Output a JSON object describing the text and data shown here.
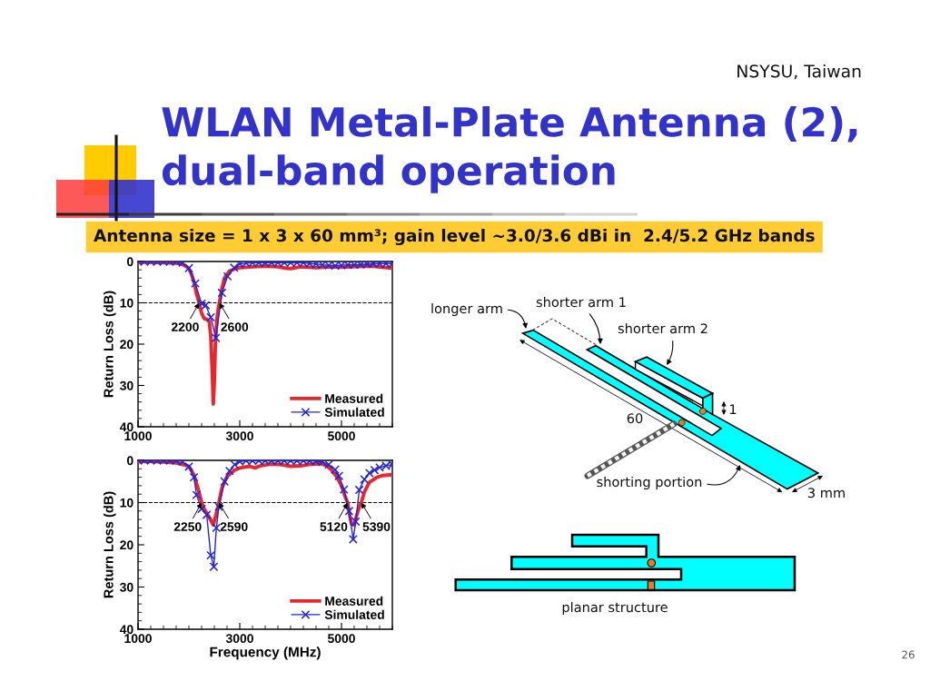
{
  "chart_data": [
    {
      "type": "other",
      "title": "WLAN Metal-Plate Antenna (2),\ndual-band operation",
      "subtitle": "Antenna size = 1 x 3 x 60 mm³; gain level ~3.0/3.6 dBi in  2.4/5.2 GHz bands",
      "annotations": [
        "NSYSU, Taiwan"
      ]
    },
    {
      "type": "line",
      "ylabel": "Return Loss (dB)",
      "xlim": [
        1000,
        6000
      ],
      "xticks": [
        1000,
        {
          "value": 1250,
          "label": null
        },
        {
          "value": 1500,
          "label": null
        },
        {
          "value": 1750,
          "label": null
        },
        {
          "value": 2000,
          "label": null
        },
        {
          "value": 2250,
          "label": null
        },
        {
          "value": 2500,
          "label": null
        },
        {
          "value": 2750,
          "label": null
        },
        3000,
        {
          "value": 3250,
          "label": null
        },
        {
          "value": 3500,
          "label": null
        },
        {
          "value": 3750,
          "label": null
        },
        {
          "value": 4000,
          "label": null
        },
        {
          "value": 4250,
          "label": null
        },
        {
          "value": 4500,
          "label": null
        },
        {
          "value": 4750,
          "label": null
        },
        5000,
        {
          "value": 5250,
          "label": null
        },
        {
          "value": 5500,
          "label": null
        },
        {
          "value": 5750,
          "label": null
        },
        {
          "value": 6000,
          "label": null
        }
      ],
      "ylim": [
        40,
        0
      ],
      "yticks": [
        0,
        {
          "value": 2,
          "label": null
        },
        {
          "value": 4,
          "label": null
        },
        {
          "value": 6,
          "label": null
        },
        {
          "value": 8,
          "label": null
        },
        10,
        {
          "value": 12,
          "label": null
        },
        {
          "value": 14,
          "label": null
        },
        {
          "value": 16,
          "label": null
        },
        {
          "value": 18,
          "label": null
        },
        20,
        {
          "value": 22,
          "label": null
        },
        {
          "value": 24,
          "label": null
        },
        {
          "value": 26,
          "label": null
        },
        {
          "value": 28,
          "label": null
        },
        30,
        {
          "value": 32,
          "label": null
        },
        {
          "value": 34,
          "label": null
        },
        {
          "value": 36,
          "label": null
        },
        {
          "value": 38,
          "label": null
        },
        40
      ],
      "legend": "bottom right",
      "ref_lines": [
        {
          "axis": "y",
          "value": 10,
          "line_style": "dashed",
          "color": "#000000"
        }
      ],
      "annotations": [
        {
          "text": "2200",
          "x": 2200,
          "y": 10
        },
        {
          "text": "2600",
          "x": 2600,
          "y": 10
        }
      ],
      "series": [
        {
          "name": "Measured",
          "color": "#e8262b",
          "x": [
            1000,
            1250,
            1500,
            1750,
            1850,
            1950,
            2000,
            2050,
            2100,
            2150,
            2200,
            2250,
            2300,
            2350,
            2400,
            2430,
            2460,
            2480,
            2500,
            2520,
            2550,
            2580,
            2600,
            2650,
            2700,
            2800,
            2900,
            3000,
            3250,
            3500,
            3750,
            3900,
            4000,
            4200,
            4500,
            4800,
            5000,
            5300,
            5600,
            5800,
            6000
          ],
          "values": [
            0.2,
            0.2,
            0.3,
            0.4,
            0.6,
            1.2,
            1.8,
            3.0,
            5.0,
            7.8,
            10.0,
            12.5,
            13.8,
            14.0,
            14.5,
            18.0,
            27.0,
            34.5,
            29.0,
            20.0,
            14.0,
            11.2,
            10.0,
            6.5,
            4.0,
            2.3,
            1.8,
            1.5,
            1.3,
            1.1,
            1.3,
            1.6,
            1.7,
            1.3,
            1.5,
            1.3,
            1.4,
            1.2,
            1.1,
            1.4,
            1.6
          ]
        },
        {
          "name": "Simulated",
          "color": "#2424d8",
          "marker": "cross",
          "x": [
            1000,
            1125,
            1250,
            1375,
            1500,
            1625,
            1750,
            1875,
            2000,
            2125,
            2250,
            2330,
            2430,
            2530,
            2650,
            2760,
            2890,
            3000,
            3125,
            3250,
            3375,
            3500,
            3625,
            3750,
            3875,
            4000,
            4125,
            4250,
            4375,
            4500,
            4625,
            4750,
            4875,
            5000,
            5125,
            5250,
            5375,
            5500,
            5625,
            5750,
            5875,
            6000
          ],
          "values": [
            0,
            0,
            0,
            0,
            0,
            0,
            0,
            0.3,
            1.6,
            5.3,
            10.2,
            10.6,
            13.5,
            18.5,
            7.6,
            3.6,
            1.5,
            0.6,
            0.4,
            0.3,
            0.3,
            0.3,
            0.3,
            0.3,
            0.3,
            0.3,
            0.3,
            0.3,
            0.5,
            0.6,
            0.8,
            0.9,
            1.0,
            0.9,
            0.8,
            0.8,
            0.7,
            0.6,
            0.5,
            0.5,
            0.5,
            0.5
          ]
        }
      ]
    },
    {
      "type": "line",
      "xlabel": "Frequency (MHz)",
      "ylabel": "Return Loss (dB)",
      "xlim": [
        1000,
        6000
      ],
      "xticks": [
        1000,
        {
          "value": 1250,
          "label": null
        },
        {
          "value": 1500,
          "label": null
        },
        {
          "value": 1750,
          "label": null
        },
        {
          "value": 2000,
          "label": null
        },
        {
          "value": 2250,
          "label": null
        },
        {
          "value": 2500,
          "label": null
        },
        {
          "value": 2750,
          "label": null
        },
        3000,
        {
          "value": 3250,
          "label": null
        },
        {
          "value": 3500,
          "label": null
        },
        {
          "value": 3750,
          "label": null
        },
        {
          "value": 4000,
          "label": null
        },
        {
          "value": 4250,
          "label": null
        },
        {
          "value": 4500,
          "label": null
        },
        {
          "value": 4750,
          "label": null
        },
        5000,
        {
          "value": 5250,
          "label": null
        },
        {
          "value": 5500,
          "label": null
        },
        {
          "value": 5750,
          "label": null
        },
        {
          "value": 6000,
          "label": null
        }
      ],
      "ylim": [
        40,
        0
      ],
      "yticks": [
        0,
        {
          "value": 2,
          "label": null
        },
        {
          "value": 4,
          "label": null
        },
        {
          "value": 6,
          "label": null
        },
        {
          "value": 8,
          "label": null
        },
        10,
        {
          "value": 12,
          "label": null
        },
        {
          "value": 14,
          "label": null
        },
        {
          "value": 16,
          "label": null
        },
        {
          "value": 18,
          "label": null
        },
        20,
        {
          "value": 22,
          "label": null
        },
        {
          "value": 24,
          "label": null
        },
        {
          "value": 26,
          "label": null
        },
        {
          "value": 28,
          "label": null
        },
        30,
        {
          "value": 32,
          "label": null
        },
        {
          "value": 34,
          "label": null
        },
        {
          "value": 36,
          "label": null
        },
        {
          "value": 38,
          "label": null
        },
        40
      ],
      "legend": "bottom right",
      "ref_lines": [
        {
          "axis": "y",
          "value": 10,
          "line_style": "dashed",
          "color": "#000000"
        }
      ],
      "annotations": [
        {
          "text": "2250",
          "x": 2250,
          "y": 10
        },
        {
          "text": "2590",
          "x": 2590,
          "y": 10
        },
        {
          "text": "5120",
          "x": 5120,
          "y": 10
        },
        {
          "text": "5390",
          "x": 5390,
          "y": 10
        }
      ],
      "series": [
        {
          "name": "Measured",
          "color": "#e8262b",
          "x": [
            1000,
            1250,
            1500,
            1750,
            1850,
            1950,
            2000,
            2100,
            2200,
            2250,
            2300,
            2400,
            2480,
            2530,
            2590,
            2650,
            2750,
            2900,
            3000,
            3200,
            3300,
            3400,
            3600,
            3800,
            4000,
            4200,
            4400,
            4600,
            4700,
            4800,
            4900,
            5000,
            5060,
            5120,
            5170,
            5200,
            5250,
            5300,
            5350,
            5390,
            5450,
            5550,
            5700,
            5800,
            6000
          ],
          "values": [
            0.3,
            0.3,
            0.4,
            0.6,
            0.9,
            1.2,
            1.4,
            3.5,
            7.5,
            10.0,
            11.5,
            13.5,
            15.3,
            13.0,
            10.0,
            6.5,
            3.8,
            2.3,
            1.8,
            1.4,
            1.8,
            1.3,
            0.9,
            1.0,
            1.4,
            1.3,
            0.9,
            0.8,
            1.2,
            2.2,
            3.8,
            6.0,
            8.2,
            10.0,
            13.5,
            15.2,
            15.3,
            13.0,
            11.0,
            10.0,
            7.5,
            5.2,
            4.0,
            3.6,
            3.4
          ]
        },
        {
          "name": "Simulated",
          "color": "#2424d8",
          "marker": "cross",
          "x": [
            1000,
            1125,
            1250,
            1375,
            1500,
            1625,
            1750,
            1875,
            2000,
            2100,
            2150,
            2250,
            2350,
            2430,
            2490,
            2540,
            2590,
            2700,
            2800,
            2900,
            3000,
            3125,
            3250,
            3375,
            3500,
            3625,
            3750,
            3875,
            4000,
            4125,
            4250,
            4375,
            4500,
            4625,
            4750,
            4875,
            4950,
            5050,
            5150,
            5230,
            5280,
            5350,
            5450,
            5550,
            5650,
            5750,
            5875,
            6000
          ],
          "values": [
            0,
            0,
            0,
            0,
            0,
            0,
            0,
            0.3,
            1.5,
            4.0,
            8.2,
            11.5,
            12.9,
            22.5,
            25.2,
            16.0,
            11.0,
            5.0,
            2.5,
            1.0,
            0.3,
            0.1,
            0.1,
            0.1,
            0.1,
            0.1,
            0.1,
            0.1,
            0.1,
            0.1,
            0.1,
            0.1,
            0.2,
            0.4,
            1.0,
            2.2,
            3.7,
            6.9,
            12.0,
            18.7,
            14.5,
            7.0,
            4.5,
            3.0,
            2.3,
            1.7,
            1.3,
            1.0
          ]
        }
      ]
    },
    {
      "type": "other",
      "annotations": [
        "longer arm",
        "shorter arm 1",
        "shorter arm 2",
        "60",
        "1",
        "shorting portion",
        "3 mm",
        "planar structure",
        "26"
      ]
    }
  ]
}
